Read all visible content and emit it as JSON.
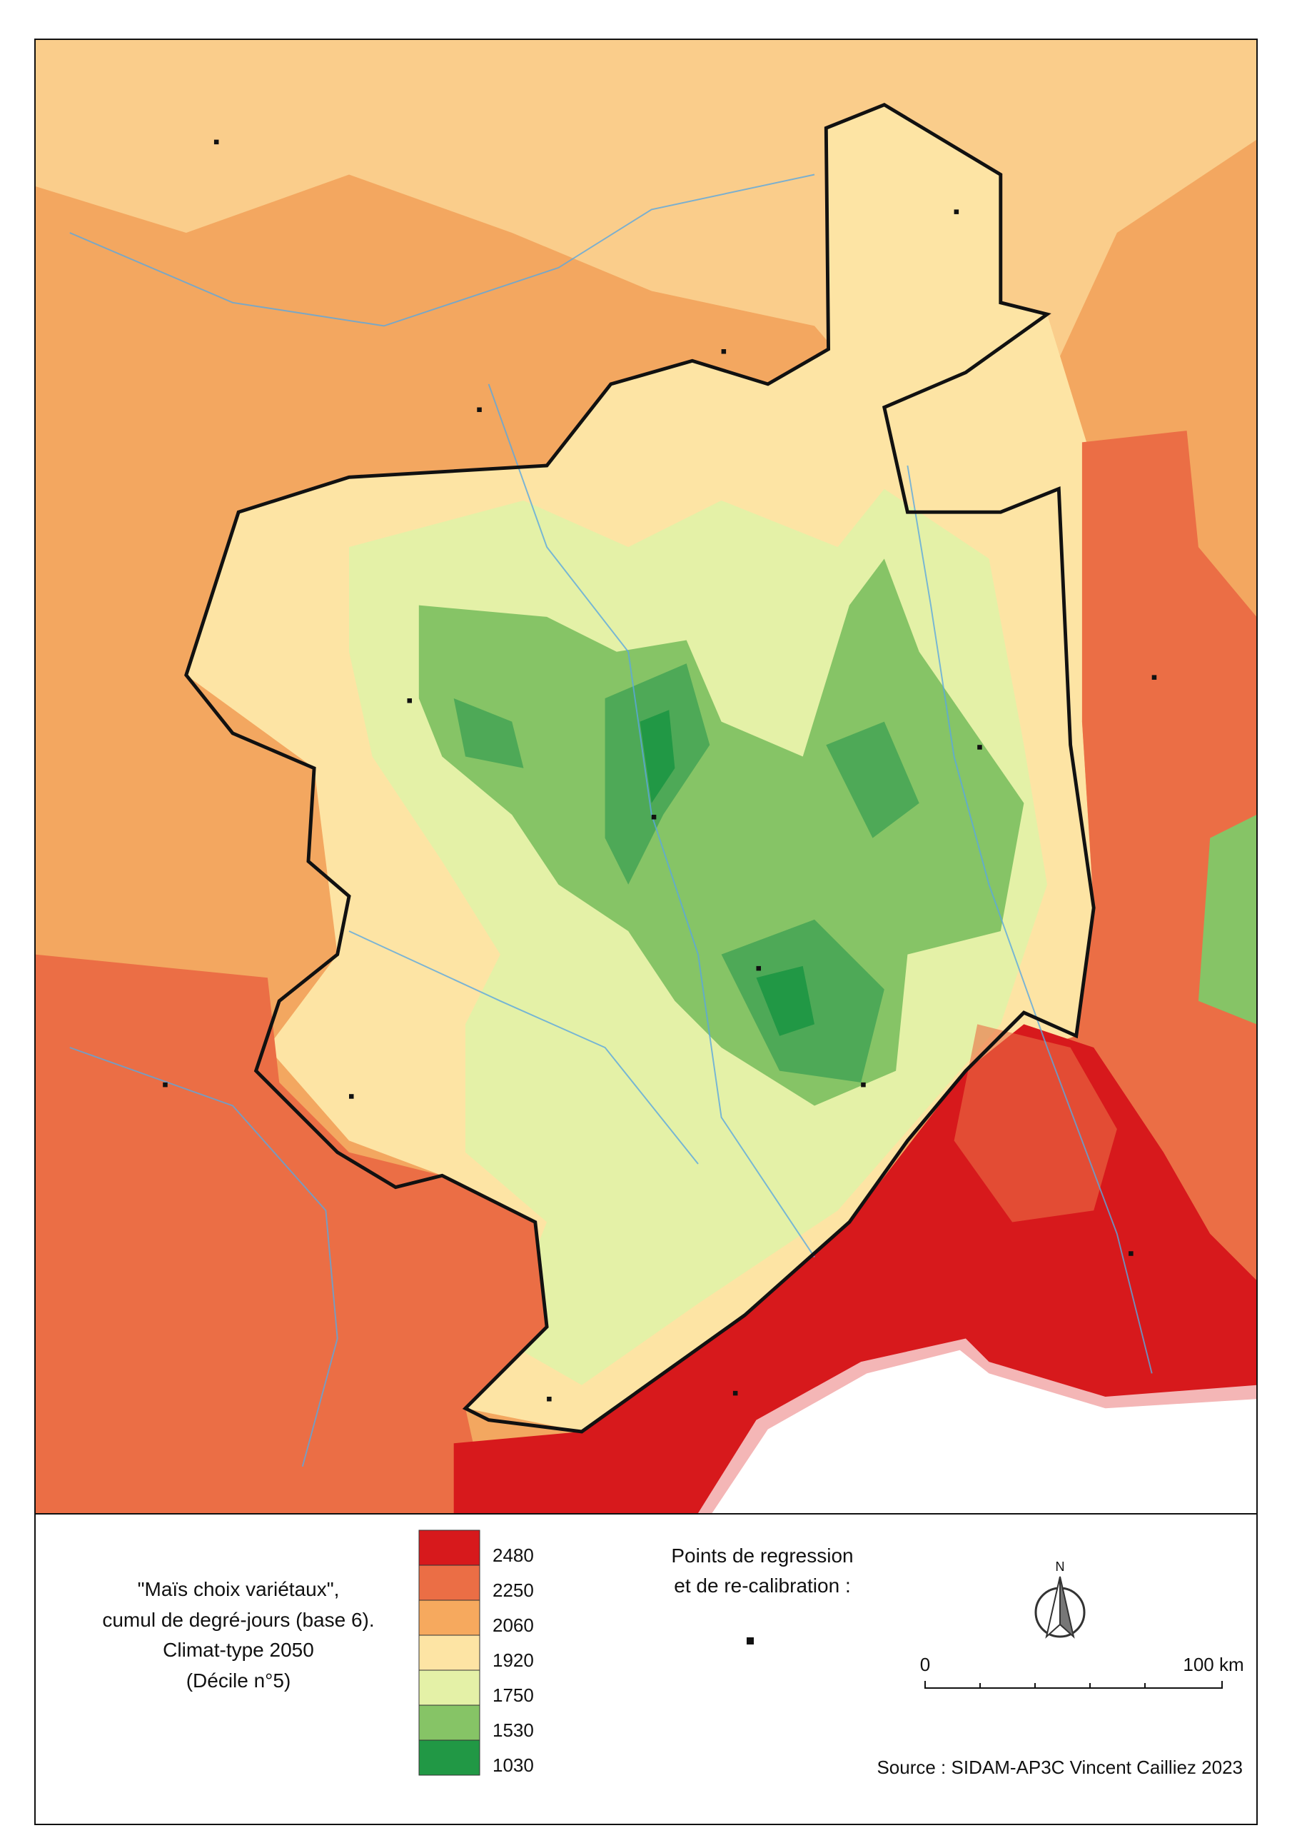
{
  "legend": {
    "title": [
      "\"Maïs choix variétaux\",",
      "cumul de degré-jours (base 6).",
      "Climat-type 2050",
      "(Décile n°5)"
    ],
    "classes": [
      {
        "value": 2480,
        "color": "#d7191c"
      },
      {
        "value": 2250,
        "color": "#eb6e45"
      },
      {
        "value": 2060,
        "color": "#f6a95e"
      },
      {
        "value": 1920,
        "color": "#fde4a4"
      },
      {
        "value": 1750,
        "color": "#e4f1a7"
      },
      {
        "value": 1530,
        "color": "#86c466"
      },
      {
        "value": 1030,
        "color": "#219845"
      }
    ],
    "points_title": [
      "Points de regression",
      "et de re-calibration :"
    ]
  },
  "north": "N",
  "scale": {
    "start": "0",
    "end": "100 km"
  },
  "source": "Source : SIDAM-AP3C Vincent Cailliez 2023"
}
